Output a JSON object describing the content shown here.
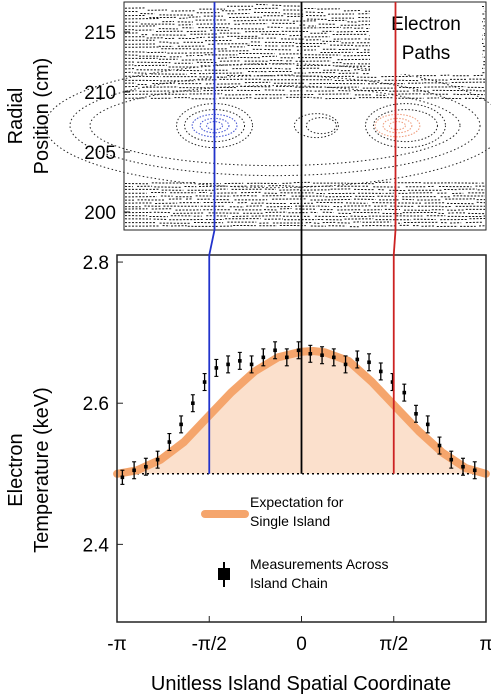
{
  "chart_data": [
    {
      "type": "scatter",
      "panel": "top",
      "title": "",
      "annotation": "Electron Paths",
      "ylabel": "Radial Position (cm)",
      "ylim": [
        198.5,
        217.5
      ],
      "yticks": [
        200,
        205,
        210,
        215
      ],
      "ytick_labels": [
        "200",
        "205",
        "210",
        "215"
      ],
      "island_centers": [
        {
          "name": "blue",
          "x": -1.57,
          "y": 207.2,
          "color": "#4f5ed6"
        },
        {
          "name": "red",
          "x": 1.57,
          "y": 207.2,
          "color": "#f0a080"
        }
      ],
      "x_separatrix_point": {
        "x": -0.15,
        "y": 207.2
      }
    },
    {
      "type": "line",
      "panel": "bottom",
      "xlabel": "Unitless Island Spatial Coordinate",
      "ylabel": "Electron Temperature (keV)",
      "xlim": [
        -3.1416,
        3.1416
      ],
      "ylim": [
        2.29,
        2.81
      ],
      "xticks": [
        -3.1416,
        -1.5708,
        0,
        1.5708,
        3.1416
      ],
      "xtick_labels": [
        "-π",
        "-π/2",
        "0",
        "π/2",
        "π"
      ],
      "yticks": [
        2.4,
        2.6,
        2.8
      ],
      "ytick_labels": [
        "2.4",
        "2.6",
        "2.8"
      ],
      "baseline": 2.5,
      "expectation": {
        "x": [
          -3.14,
          -2.8,
          -2.4,
          -2.0,
          -1.6,
          -1.2,
          -0.8,
          -0.4,
          0.0,
          0.2,
          0.4,
          0.8,
          1.2,
          1.6,
          2.0,
          2.4,
          2.8,
          3.14
        ],
        "y": [
          2.5,
          2.505,
          2.52,
          2.545,
          2.58,
          2.615,
          2.645,
          2.665,
          2.673,
          2.674,
          2.672,
          2.66,
          2.63,
          2.595,
          2.56,
          2.53,
          2.508,
          2.5
        ]
      },
      "measurements": {
        "x": [
          -3.05,
          -2.85,
          -2.65,
          -2.45,
          -2.25,
          -2.05,
          -1.85,
          -1.65,
          -1.45,
          -1.25,
          -1.05,
          -0.85,
          -0.65,
          -0.45,
          -0.25,
          -0.05,
          0.15,
          0.35,
          0.55,
          0.75,
          0.95,
          1.15,
          1.35,
          1.55,
          1.75,
          1.95,
          2.15,
          2.35,
          2.55,
          2.75,
          2.95
        ],
        "y": [
          2.495,
          2.505,
          2.51,
          2.52,
          2.545,
          2.57,
          2.6,
          2.63,
          2.65,
          2.655,
          2.66,
          2.655,
          2.665,
          2.675,
          2.665,
          2.675,
          2.67,
          2.668,
          2.665,
          2.655,
          2.662,
          2.658,
          2.645,
          2.63,
          2.615,
          2.585,
          2.57,
          2.54,
          2.52,
          2.51,
          2.505
        ],
        "err": [
          0.01,
          0.012,
          0.012,
          0.012,
          0.012,
          0.012,
          0.012,
          0.012,
          0.012,
          0.012,
          0.012,
          0.012,
          0.012,
          0.012,
          0.012,
          0.012,
          0.012,
          0.012,
          0.012,
          0.012,
          0.012,
          0.012,
          0.012,
          0.012,
          0.012,
          0.012,
          0.012,
          0.012,
          0.012,
          0.012,
          0.012
        ]
      },
      "vertical_lines": [
        {
          "x": -1.5708,
          "color": "#2233cc"
        },
        {
          "x": 0,
          "color": "#000000"
        },
        {
          "x": 1.5708,
          "color": "#cc2222"
        }
      ],
      "legend": [
        {
          "label_line1": "Expectation for",
          "label_line2": "Single Island",
          "color": "#f5a56c"
        },
        {
          "label_line1": "Measurements Across",
          "label_line2": "Island Chain",
          "color": "#000000"
        }
      ],
      "legend_placement": "lower-center",
      "expectation_color": "#f5a56c",
      "fill_color": "#fbe0cc"
    }
  ]
}
